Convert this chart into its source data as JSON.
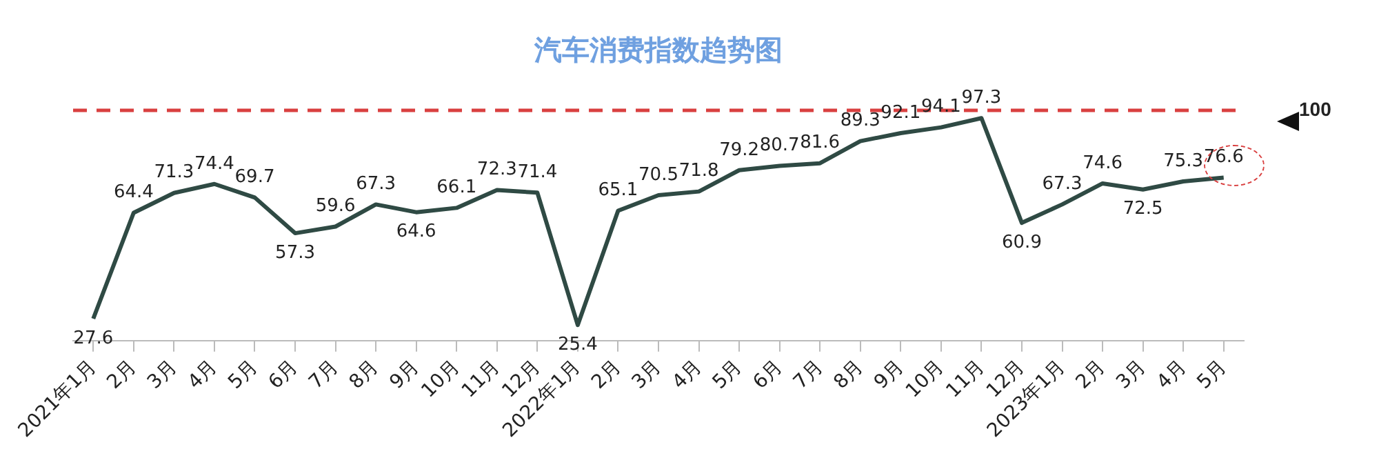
{
  "chart_data": {
    "type": "line",
    "title": "汽车消费指数趋势图",
    "categories": [
      "2021年1月",
      "2月",
      "3月",
      "4月",
      "5月",
      "6月",
      "7月",
      "8月",
      "9月",
      "10月",
      "11月",
      "12月",
      "2022年1月",
      "2月",
      "3月",
      "4月",
      "5月",
      "6月",
      "7月",
      "8月",
      "9月",
      "10月",
      "11月",
      "12月",
      "2023年1月",
      "2月",
      "3月",
      "4月",
      "5月"
    ],
    "series": [
      {
        "color": "#2f4a44",
        "values": [
          27.6,
          64.4,
          71.3,
          74.4,
          69.7,
          57.3,
          59.6,
          67.3,
          64.6,
          66.1,
          72.3,
          71.4,
          25.4,
          65.1,
          70.5,
          71.8,
          79.2,
          80.7,
          81.6,
          89.3,
          92.1,
          94.1,
          97.3,
          60.9,
          67.3,
          74.6,
          72.5,
          75.3,
          76.6
        ]
      }
    ],
    "ref_lines": [
      {
        "axis": "y",
        "value": 100,
        "label": "100",
        "color": "#d94040",
        "line_style": "dashed"
      }
    ],
    "data_labels": true,
    "legend": false,
    "grid": false,
    "marker": "none",
    "line_style": "solid"
  }
}
